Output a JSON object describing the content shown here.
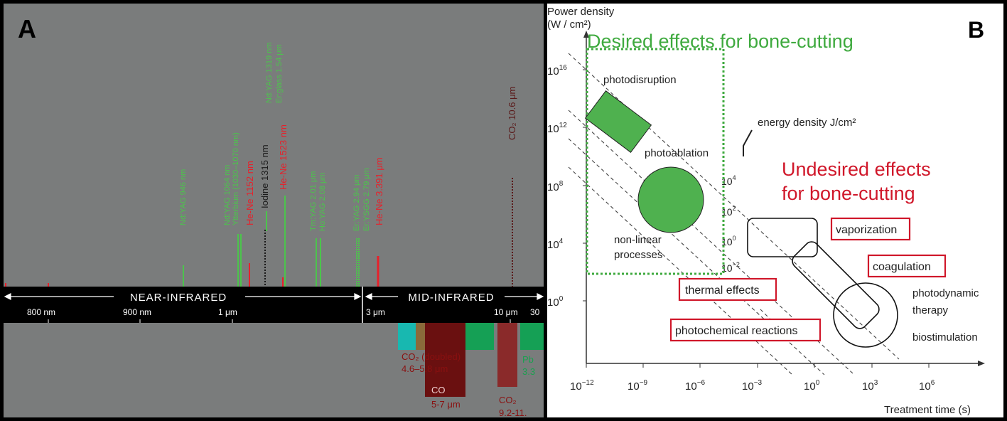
{
  "panel_a": {
    "letter": "A",
    "band_near": "NEAR-INFRARED",
    "band_mid": "MID-INFRARED",
    "ticks": [
      "800 nm",
      "900 nm",
      "1 μm",
      "3 μm",
      "10 μm",
      "30"
    ],
    "laser_lines": [
      {
        "label": "Nd:YAG 946 nm",
        "color": "#4cc44c"
      },
      {
        "label": "Nd:YAG 1064 nm",
        "color": "#4cc44c"
      },
      {
        "label": "Ytterbium (1030–1070 nm)",
        "color": "#4cc44c"
      },
      {
        "label": "He-Ne 1152 nm",
        "color": "#e8202a"
      },
      {
        "label": "Iodine 1315 nm",
        "color": "#1a1a1a"
      },
      {
        "label": "Nd:YAG 1319 nm",
        "color": "#4cc44c"
      },
      {
        "label": "He-Ne 1523 nm",
        "color": "#e8202a"
      },
      {
        "label": "Er:glass 1.54 μm",
        "color": "#4cc44c"
      },
      {
        "label": "Tm:YAG 2.01 μm",
        "color": "#4cc44c"
      },
      {
        "label": "Ho:YAG 2.08 μm",
        "color": "#4cc44c"
      },
      {
        "label": "Er:YAG 2.94 μm",
        "color": "#4cc44c"
      },
      {
        "label": "Er:YSGG 2.79 μm",
        "color": "#4cc44c"
      },
      {
        "label": "He-Ne 3.391 μm",
        "color": "#e8202a"
      },
      {
        "label": "CO₂ 10.6 μm",
        "color": "#5a1a1a"
      }
    ],
    "blocks": [
      {
        "label1": "CO₂ (doubled)",
        "label2": "4.6–5.8 μm"
      },
      {
        "label1": "CO",
        "label2": "5-7 μm"
      },
      {
        "label1": "CO₂",
        "label2": "9.2-11."
      },
      {
        "label1": "Pb",
        "label2": "3.3"
      }
    ]
  },
  "panel_b": {
    "letter": "B",
    "y_title_1": "Power density",
    "y_title_2": "(W / cm²)",
    "x_title": "Treatment time (s)",
    "y_ticks": [
      {
        "base": "10",
        "exp": "16"
      },
      {
        "base": "10",
        "exp": "12"
      },
      {
        "base": "10",
        "exp": "8"
      },
      {
        "base": "10",
        "exp": "4"
      },
      {
        "base": "10",
        "exp": "0"
      }
    ],
    "x_ticks": [
      {
        "base": "10",
        "exp": "−12"
      },
      {
        "base": "10",
        "exp": "−9"
      },
      {
        "base": "10",
        "exp": "−6"
      },
      {
        "base": "10",
        "exp": "−3"
      },
      {
        "base": "10",
        "exp": "0"
      },
      {
        "base": "10",
        "exp": "3"
      },
      {
        "base": "10",
        "exp": "6"
      }
    ],
    "energy_label": "energy density J/cm²",
    "energy_ticks": [
      {
        "base": "10",
        "exp": "4"
      },
      {
        "base": "10",
        "exp": "2"
      },
      {
        "base": "10",
        "exp": "0"
      },
      {
        "base": "10",
        "exp": "−2"
      }
    ],
    "desired_label": "Desired effects for bone-cutting",
    "undesired_label_1": "Undesired effects",
    "undesired_label_2": "for bone-cutting",
    "photodisruption": "photodisruption",
    "photoablation": "photoablation",
    "nonlinear_1": "non-linear",
    "nonlinear_2": "processes",
    "vaporization": "vaporization",
    "coagulation": "coagulation",
    "thermal": "thermal effects",
    "photochemical": "photochemical reactions",
    "pdt_1": "photodynamic",
    "pdt_2": "therapy",
    "biostim": "biostimulation",
    "colors": {
      "green": "#3faa3f",
      "red": "#d0172a"
    }
  }
}
